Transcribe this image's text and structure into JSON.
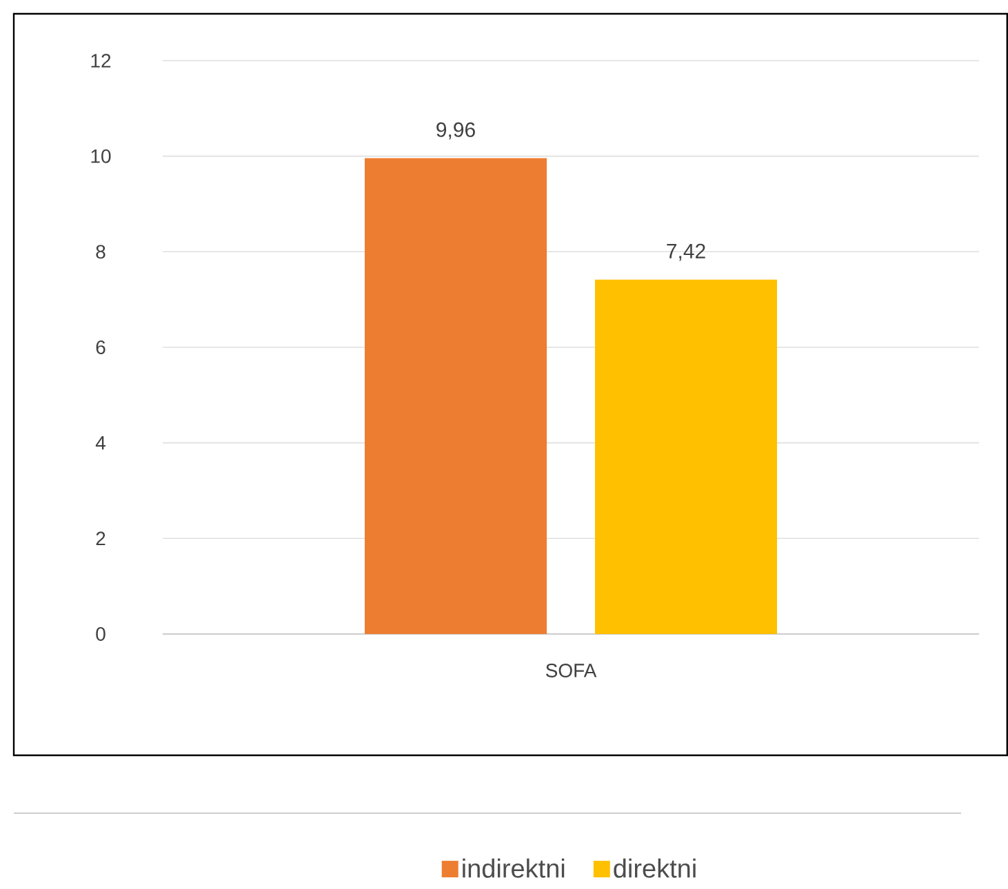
{
  "chart_data": {
    "type": "bar",
    "categories": [
      "SOFA"
    ],
    "series": [
      {
        "name": "indirektni",
        "color": "#ed7d31",
        "values": [
          9.96
        ],
        "value_labels": [
          "9,96"
        ]
      },
      {
        "name": "direktni",
        "color": "#ffc000",
        "values": [
          7.42
        ],
        "value_labels": [
          "7,42"
        ]
      }
    ],
    "ylim": [
      0,
      12
    ],
    "yticks": [
      0,
      2,
      4,
      6,
      8,
      10,
      12
    ],
    "grid": "y",
    "legend": "bottom"
  }
}
